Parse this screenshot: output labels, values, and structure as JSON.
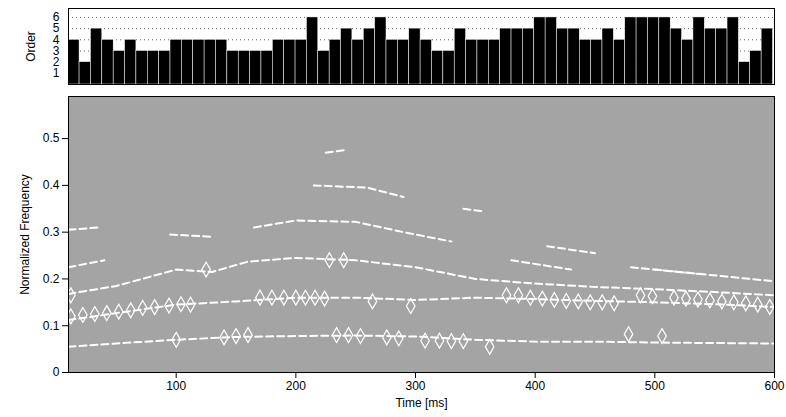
{
  "chart_data": [
    {
      "type": "bar",
      "y_label": "Order",
      "color": "#000000",
      "grid": true,
      "tick_labels": "y",
      "xlim": [
        10,
        600
      ],
      "ylim": [
        0,
        6.8
      ],
      "yticks": [
        1,
        2,
        3,
        4,
        5,
        6
      ],
      "x": [
        14.5,
        24,
        33.5,
        43,
        52.5,
        62,
        71.5,
        81,
        90.5,
        100,
        109.5,
        119,
        128.5,
        138,
        147.5,
        157,
        166.5,
        176,
        185.5,
        195,
        204.5,
        214,
        223.5,
        233,
        242.5,
        252,
        261.5,
        271,
        280.5,
        290,
        299.5,
        309,
        318.5,
        328,
        337.5,
        347,
        356.5,
        366,
        375.5,
        385,
        394.5,
        404,
        413.5,
        423,
        432.5,
        442,
        451.5,
        461,
        470.5,
        480,
        489.5,
        499,
        508.5,
        518,
        527.5,
        537,
        546.5,
        556,
        565.5,
        575,
        584.5,
        594
      ],
      "values": [
        4,
        2,
        5,
        4,
        3,
        4,
        3,
        3,
        3,
        4,
        4,
        4,
        4,
        4,
        3,
        3,
        3,
        3,
        4,
        4,
        4,
        6,
        3,
        4,
        5,
        4,
        5,
        6,
        4,
        4,
        5,
        4,
        3,
        3,
        5,
        4,
        4,
        4,
        5,
        5,
        5,
        6,
        6,
        5,
        5,
        4,
        4,
        5,
        4,
        6,
        6,
        6,
        6,
        5,
        4,
        6,
        5,
        5,
        6,
        2,
        3,
        5
      ]
    },
    {
      "type": "line",
      "x_label": "Time [ms]",
      "y_label": "Normalized Frequency",
      "grid": false,
      "xlim": [
        10,
        600
      ],
      "ylim": [
        0,
        0.59
      ],
      "xticks": [
        100,
        200,
        300,
        400,
        500,
        600
      ],
      "yticks": [
        0,
        0.1,
        0.2,
        0.3,
        0.4,
        0.5
      ],
      "series": [
        {
          "color": "#ffffff",
          "line_style": "dashed",
          "x": [
            10,
            50,
            100,
            150,
            200,
            250,
            300,
            350,
            400,
            450,
            500,
            550,
            600
          ],
          "values": [
            0.055,
            0.062,
            0.07,
            0.076,
            0.078,
            0.079,
            0.077,
            0.07,
            0.066,
            0.066,
            0.064,
            0.063,
            0.062
          ]
        },
        {
          "color": "#ffffff",
          "line_style": "dashed",
          "x": [
            10,
            50,
            100,
            150,
            200,
            250,
            300,
            350,
            400,
            450,
            500,
            550,
            600
          ],
          "values": [
            0.112,
            0.127,
            0.145,
            0.152,
            0.16,
            0.16,
            0.155,
            0.16,
            0.157,
            0.153,
            0.15,
            0.146,
            0.14
          ]
        },
        {
          "color": "#ffffff",
          "line_style": "dashed",
          "x": [
            10,
            50,
            100,
            130,
            160,
            200,
            250,
            300,
            350,
            400,
            450,
            500,
            550,
            600
          ],
          "values": [
            0.168,
            0.185,
            0.22,
            0.215,
            0.237,
            0.245,
            0.24,
            0.225,
            0.2,
            0.19,
            0.183,
            0.178,
            0.172,
            0.165
          ]
        },
        {
          "color": "#ffffff",
          "line_style": "dashed",
          "x": [
            10,
            40,
            60,
            95,
            130,
            140,
            165,
            200,
            250,
            290,
            330,
            350,
            380,
            430,
            460,
            500,
            560,
            600
          ],
          "values": [
            0.225,
            0.24,
            null,
            0.295,
            0.29,
            null,
            0.31,
            0.325,
            0.322,
            0.3,
            0.28,
            null,
            0.24,
            0.22,
            null,
            0.22,
            0.205,
            0.195
          ]
        },
        {
          "color": "#ffffff",
          "line_style": "dashed",
          "x": [
            10,
            35,
            50,
            215,
            260,
            290,
            300,
            410,
            450,
            460,
            480,
            540
          ],
          "values": [
            0.305,
            0.31,
            null,
            0.4,
            0.395,
            0.375,
            null,
            0.27,
            0.255,
            null,
            0.225,
            0.21
          ]
        },
        {
          "color": "#ffffff",
          "line_style": "dashed",
          "x": [
            225,
            240,
            250,
            340,
            355
          ],
          "values": [
            0.47,
            0.475,
            null,
            0.35,
            0.345
          ]
        },
        {
          "type": "scatter",
          "marker": "diamond",
          "color": "#ffffff",
          "x": [
            12,
            22,
            32,
            42,
            52,
            62,
            72,
            82,
            94,
            104,
            112,
            12,
            125,
            228,
            240,
            100,
            140,
            150,
            160,
            170,
            180,
            190,
            200,
            208,
            216,
            224,
            234,
            244,
            254,
            264,
            276,
            286,
            296,
            308,
            320,
            330,
            340,
            362,
            376,
            386,
            396,
            406,
            416,
            426,
            436,
            446,
            456,
            466,
            478,
            488,
            498,
            506,
            516,
            526,
            536,
            546,
            556,
            566,
            576,
            586,
            596
          ],
          "values": [
            0.12,
            0.123,
            0.125,
            0.127,
            0.13,
            0.133,
            0.138,
            0.14,
            0.143,
            0.146,
            0.145,
            0.165,
            0.22,
            0.24,
            0.24,
            0.07,
            0.075,
            0.078,
            0.08,
            0.16,
            0.16,
            0.16,
            0.16,
            0.16,
            0.16,
            0.158,
            0.08,
            0.08,
            0.078,
            0.152,
            0.075,
            0.073,
            0.142,
            0.068,
            0.068,
            0.067,
            0.067,
            0.055,
            0.165,
            0.165,
            0.16,
            0.158,
            0.155,
            0.153,
            0.152,
            0.15,
            0.15,
            0.148,
            0.082,
            0.165,
            0.163,
            0.078,
            0.16,
            0.158,
            0.156,
            0.154,
            0.152,
            0.15,
            0.148,
            0.145,
            0.14
          ]
        }
      ]
    }
  ]
}
